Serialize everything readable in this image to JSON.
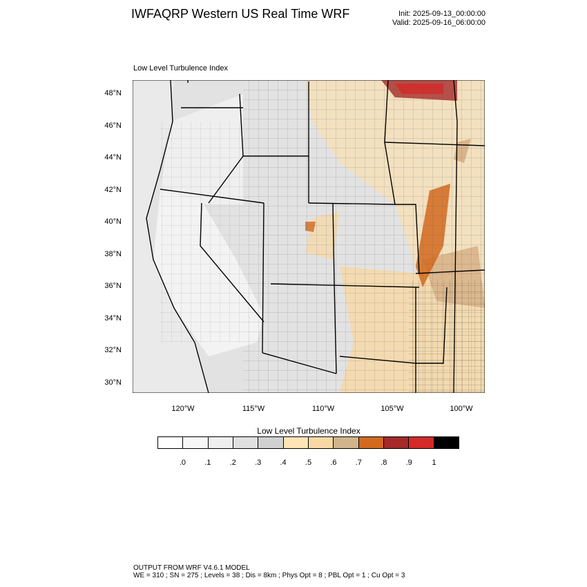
{
  "header": {
    "title": "IWFAQRP Western US Real Time WRF",
    "init": "Init: 2025-09-13_00:00:00",
    "valid": "Valid: 2025-09-16_06:00:00"
  },
  "map": {
    "subtitle": "Low Level Turbulence Index",
    "lat_labels": [
      "48°N",
      "46°N",
      "44°N",
      "42°N",
      "40°N",
      "38°N",
      "36°N",
      "34°N",
      "32°N",
      "30°N"
    ],
    "lon_labels": [
      "120°W",
      "115°W",
      "110°W",
      "105°W",
      "100°W"
    ],
    "colors": {
      "background_gray": "#e6e6e6",
      "ocean_gray": "#eeeeee",
      "border": "#000000"
    }
  },
  "legend": {
    "title": "Low Level Turbulence Index",
    "colors": [
      "#ffffff",
      "#f7f7f7",
      "#efefef",
      "#e0e0e0",
      "#d0d0d0",
      "#ffe4b5",
      "#f8d8a4",
      "#d2b48c",
      "#d2691e",
      "#a52a2a",
      "#d42a2a",
      "#000000"
    ],
    "ticks": [
      ".0",
      ".1",
      ".2",
      ".3",
      ".4",
      ".5",
      ".6",
      ".7",
      ".8",
      ".9",
      "1"
    ]
  },
  "footer": {
    "line1": "OUTPUT FROM WRF V4.6.1 MODEL",
    "line2": "WE = 310 ; SN = 275 ; Levels = 38 ; Dis = 8km ; Phys Opt = 8 ; PBL Opt = 1 ; Cu Opt = 3"
  }
}
